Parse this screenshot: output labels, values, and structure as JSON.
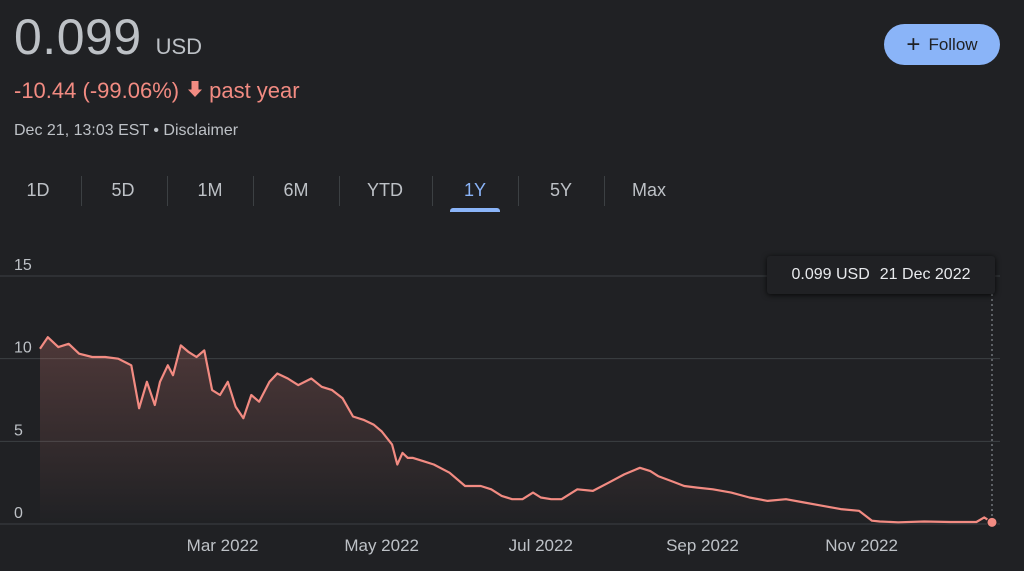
{
  "quote": {
    "price": "0.099",
    "currency": "USD",
    "change": "-10.44 (-99.06%)",
    "period": "past year",
    "timestamp": "Dec 21, 13:03 EST",
    "separator": "•",
    "disclaimer": "Disclaimer"
  },
  "follow_button": {
    "label": "Follow"
  },
  "tabs": [
    {
      "label": "1D"
    },
    {
      "label": "5D"
    },
    {
      "label": "1M"
    },
    {
      "label": "6M"
    },
    {
      "label": "YTD"
    },
    {
      "label": "1Y",
      "active": true
    },
    {
      "label": "5Y"
    },
    {
      "label": "Max"
    }
  ],
  "tooltip": {
    "value": "0.099 USD",
    "date": "21 Dec 2022"
  },
  "colors": {
    "line": "#f28b82",
    "accent": "#8ab4f8",
    "background": "#202124",
    "grid": "#3c4043"
  },
  "chart_data": {
    "type": "line",
    "ylim": [
      0,
      15
    ],
    "yticks": [
      0,
      5,
      10,
      15
    ],
    "xlim": [
      "2021-12-21",
      "2022-12-21"
    ],
    "xticks": [
      {
        "date": "2022-03-01",
        "label": "Mar 2022"
      },
      {
        "date": "2022-05-01",
        "label": "May 2022"
      },
      {
        "date": "2022-07-01",
        "label": "Jul 2022"
      },
      {
        "date": "2022-09-01",
        "label": "Sep 2022"
      },
      {
        "date": "2022-11-01",
        "label": "Nov 2022"
      }
    ],
    "series": [
      {
        "x": [
          "2021-12-21",
          "2021-12-24",
          "2021-12-28",
          "2022-01-01",
          "2022-01-05",
          "2022-01-10",
          "2022-01-15",
          "2022-01-20",
          "2022-01-25",
          "2022-01-28",
          "2022-01-31",
          "2022-02-03",
          "2022-02-05",
          "2022-02-08",
          "2022-02-10",
          "2022-02-13",
          "2022-02-16",
          "2022-02-19",
          "2022-02-22",
          "2022-02-25",
          "2022-02-28",
          "2022-03-03",
          "2022-03-06",
          "2022-03-09",
          "2022-03-12",
          "2022-03-15",
          "2022-03-19",
          "2022-03-22",
          "2022-03-26",
          "2022-03-30",
          "2022-04-04",
          "2022-04-08",
          "2022-04-12",
          "2022-04-16",
          "2022-04-20",
          "2022-04-24",
          "2022-04-28",
          "2022-05-01",
          "2022-05-05",
          "2022-05-07",
          "2022-05-09",
          "2022-05-11",
          "2022-05-13",
          "2022-05-17",
          "2022-05-21",
          "2022-05-27",
          "2022-06-02",
          "2022-06-08",
          "2022-06-12",
          "2022-06-16",
          "2022-06-20",
          "2022-06-24",
          "2022-06-28",
          "2022-07-01",
          "2022-07-05",
          "2022-07-09",
          "2022-07-15",
          "2022-07-21",
          "2022-07-27",
          "2022-08-02",
          "2022-08-08",
          "2022-08-12",
          "2022-08-15",
          "2022-08-20",
          "2022-08-25",
          "2022-08-30",
          "2022-09-05",
          "2022-09-12",
          "2022-09-19",
          "2022-09-26",
          "2022-10-03",
          "2022-10-10",
          "2022-10-17",
          "2022-10-24",
          "2022-10-31",
          "2022-11-05",
          "2022-11-08",
          "2022-11-15",
          "2022-11-25",
          "2022-12-05",
          "2022-12-15",
          "2022-12-18",
          "2022-12-21"
        ],
        "y": [
          10.6,
          11.3,
          10.7,
          10.9,
          10.3,
          10.1,
          10.1,
          10.0,
          9.6,
          7.0,
          8.6,
          7.2,
          8.6,
          9.6,
          9.0,
          10.8,
          10.4,
          10.1,
          10.5,
          8.1,
          7.8,
          8.6,
          7.1,
          6.4,
          7.8,
          7.4,
          8.6,
          9.1,
          8.8,
          8.4,
          8.8,
          8.3,
          8.1,
          7.6,
          6.5,
          6.3,
          6.0,
          5.6,
          4.8,
          3.6,
          4.3,
          4.0,
          4.0,
          3.8,
          3.6,
          3.1,
          2.3,
          2.3,
          2.1,
          1.7,
          1.5,
          1.5,
          1.9,
          1.6,
          1.5,
          1.5,
          2.1,
          2.0,
          2.5,
          3.0,
          3.4,
          3.2,
          2.9,
          2.6,
          2.3,
          2.2,
          2.1,
          1.9,
          1.6,
          1.4,
          1.5,
          1.3,
          1.1,
          0.9,
          0.8,
          0.2,
          0.15,
          0.1,
          0.15,
          0.12,
          0.12,
          0.4,
          0.099
        ]
      }
    ]
  }
}
